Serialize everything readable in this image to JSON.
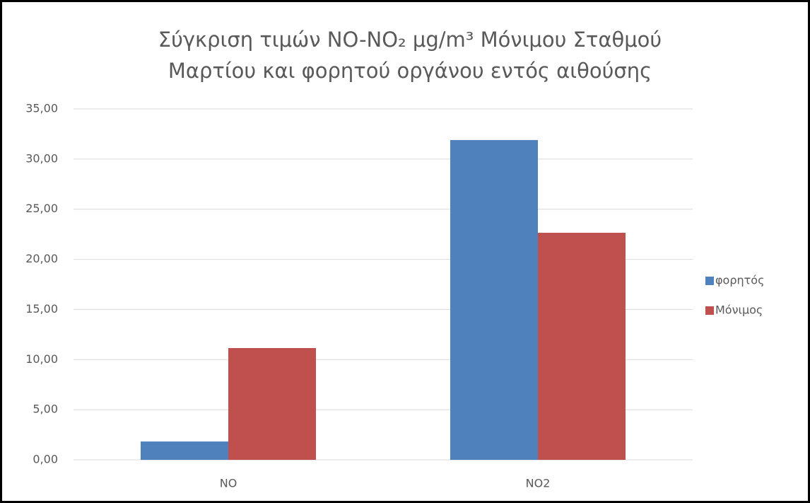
{
  "chart_data": {
    "type": "bar",
    "title": "Σύγκριση τιμών NO-NO₂ μg/m³ Μόνιμου Σταθμού Μαρτίου και φορητού οργάνου εντός αιθούσης",
    "categories": [
      "NO",
      "NO2"
    ],
    "series": [
      {
        "name": "φορητός",
        "color": "#4f81bd",
        "values": [
          1.83,
          31.9
        ]
      },
      {
        "name": "Μόνιμος",
        "color": "#c0504d",
        "values": [
          11.15,
          22.65
        ]
      }
    ],
    "ylim": [
      0,
      35
    ],
    "yticks": [
      {
        "value": 0,
        "label": "0,00"
      },
      {
        "value": 5,
        "label": "5,00"
      },
      {
        "value": 10,
        "label": "10,00"
      },
      {
        "value": 15,
        "label": "15,00"
      },
      {
        "value": 20,
        "label": "20,00"
      },
      {
        "value": 25,
        "label": "25,00"
      },
      {
        "value": 30,
        "label": "30,00"
      },
      {
        "value": 35,
        "label": "35,00"
      }
    ],
    "grid": true,
    "legend": "right"
  }
}
